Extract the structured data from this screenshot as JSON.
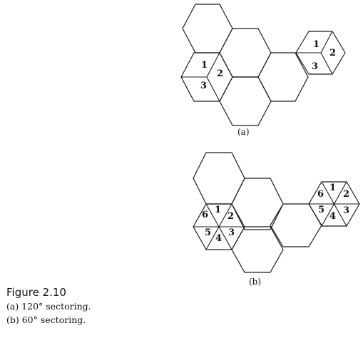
{
  "figure": {
    "title": "Figure 2.10",
    "captions": [
      "(a) 120° sectoring.",
      "(b) 60° sectoring."
    ]
  },
  "diagram_a": {
    "label": "(a)",
    "sector_labels_left": [
      "1",
      "2",
      "3"
    ],
    "sector_labels_right": [
      "1",
      "2",
      "3"
    ]
  },
  "diagram_b": {
    "label": "(b)",
    "sector_labels_left": [
      "1",
      "2",
      "3",
      "4",
      "5",
      "6"
    ],
    "sector_labels_right": [
      "1",
      "2",
      "3",
      "4",
      "5",
      "6"
    ]
  }
}
